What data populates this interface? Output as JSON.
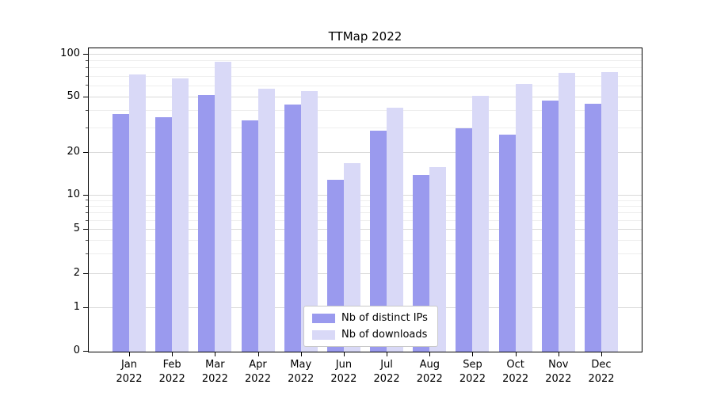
{
  "chart_data": {
    "type": "bar",
    "title": "TTMap 2022",
    "categories": [
      "Jan 2022",
      "Feb 2022",
      "Mar 2022",
      "Apr 2022",
      "May 2022",
      "Jun 2022",
      "Jul 2022",
      "Aug 2022",
      "Sep 2022",
      "Oct 2022",
      "Nov 2022",
      "Dec 2022"
    ],
    "series": [
      {
        "name": "Nb of distinct IPs",
        "color": "#9a9aee",
        "values": [
          38,
          36,
          52,
          34,
          44,
          13,
          29,
          14,
          30,
          27,
          47,
          45
        ]
      },
      {
        "name": "Nb of downloads",
        "color": "#d9d9f7",
        "values": [
          72,
          68,
          89,
          57,
          55,
          17,
          42,
          16,
          51,
          62,
          74,
          75
        ]
      }
    ],
    "yscale": "symlog",
    "yticks": [
      0,
      1,
      2,
      5,
      10,
      20,
      50,
      100
    ],
    "minor_yticks": [
      3,
      4,
      6,
      7,
      8,
      9,
      30,
      40,
      60,
      70,
      80,
      90
    ],
    "ylim": [
      0,
      110
    ],
    "grid": true,
    "legend_position": "lower center"
  }
}
